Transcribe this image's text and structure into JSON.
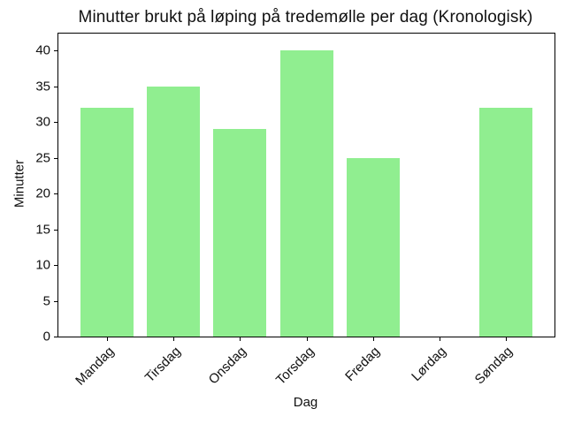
{
  "chart_data": {
    "type": "bar",
    "title": "Minutter brukt på løping på tredemølle per dag (Kronologisk)",
    "xlabel": "Dag",
    "ylabel": "Minutter",
    "categories": [
      "Mandag",
      "Tirsdag",
      "Onsdag",
      "Torsdag",
      "Fredag",
      "Lørdag",
      "Søndag"
    ],
    "values": [
      32,
      35,
      29,
      40,
      25,
      0,
      32
    ],
    "yticks": [
      0,
      5,
      10,
      15,
      20,
      25,
      30,
      35,
      40
    ],
    "ylim": [
      0,
      42.4
    ],
    "xtick_rotation": 45,
    "grid": false,
    "legend": "none",
    "bar_color": "#90EE90",
    "background": "#ffffff",
    "text_color": "#111111",
    "axis_color": "#000000"
  }
}
